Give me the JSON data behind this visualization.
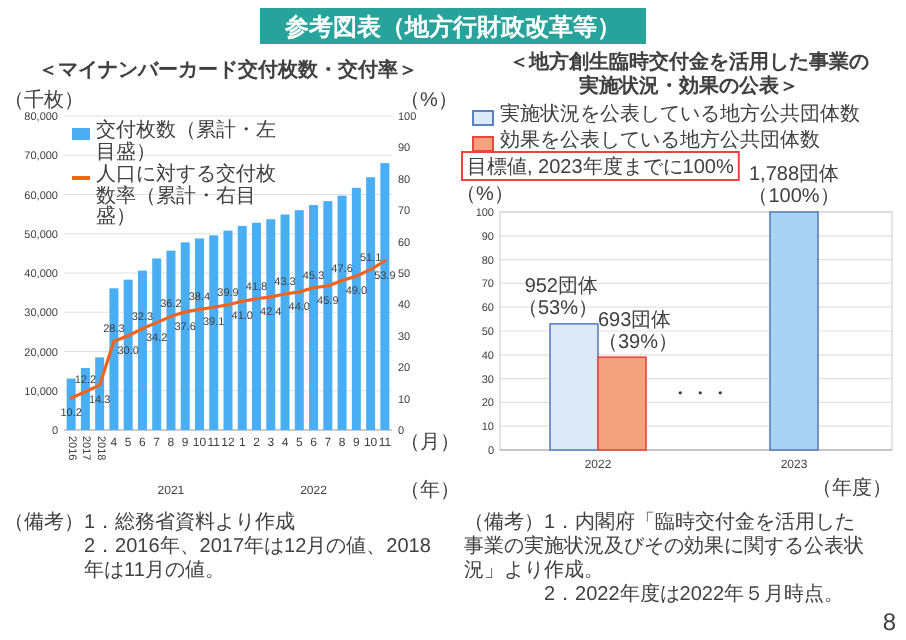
{
  "chart_data": [
    {
      "type": "other",
      "title": "参考図表（地方行財政改革等）"
    },
    {
      "type": "bar",
      "title": "＜マイナンバーカード交付枚数・交付率＞",
      "ylabel": "（千枚）",
      "y2label": "（%）",
      "xlabel": "（月）",
      "categories": [
        "2016",
        "2017",
        "2018",
        "4",
        "5",
        "6",
        "7",
        "8",
        "9",
        "10",
        "11",
        "12",
        "1",
        "2",
        "3",
        "4",
        "5",
        "6",
        "7",
        "8",
        "9",
        "10",
        "11"
      ],
      "series": [
        {
          "name": "交付枚数（累計・左目盛）",
          "color": "#4aaef5",
          "values": [
            13100,
            15800,
            18500,
            36100,
            38300,
            40600,
            43700,
            45700,
            47800,
            48800,
            49600,
            50800,
            52000,
            52800,
            53700,
            54900,
            56000,
            57300,
            58300,
            59700,
            61700,
            64400,
            68000
          ]
        },
        {
          "name": "人口に対する交付枚数率（累計・右目盛）",
          "type": "line",
          "axis": "y2",
          "color": "#f0641e",
          "values": [
            10.2,
            12.2,
            14.3,
            28.3,
            30.0,
            32.3,
            34.2,
            36.2,
            37.6,
            38.4,
            39.1,
            39.9,
            41.0,
            41.8,
            42.4,
            43.3,
            44.0,
            45.3,
            45.9,
            47.6,
            49.0,
            51.1,
            53.9
          ],
          "value_labels": [
            "10.2",
            "12.2",
            "14.3",
            "28.3",
            "30.0",
            "32.3",
            "34.2",
            "36.2",
            "37.6",
            "38.4",
            "39.1",
            "39.9",
            "41.0",
            "41.8",
            "42.4",
            "43.3",
            "44.0",
            "45.3",
            "45.9",
            "47.6",
            "49.0",
            "51.1",
            "53.9"
          ]
        }
      ],
      "ylim": [
        0,
        80000
      ],
      "yticks": [
        0,
        {
          "value": 10000,
          "label": "10,000"
        },
        {
          "value": 20000,
          "label": "20,000"
        },
        {
          "value": 30000,
          "label": "30,000"
        },
        {
          "value": 40000,
          "label": "40,000"
        },
        {
          "value": 50000,
          "label": "50,000"
        },
        {
          "value": 60000,
          "label": "60,000"
        },
        {
          "value": 70000,
          "label": "70,000"
        },
        {
          "value": 80000,
          "label": "80,000"
        }
      ],
      "y2lim": [
        0,
        100
      ],
      "y2ticks": [
        0,
        10,
        20,
        30,
        40,
        50,
        60,
        70,
        80,
        90,
        100
      ],
      "grid": "y",
      "legend": "top left",
      "annotations": [
        "2021",
        "2022",
        "（年）",
        "（備考）1．総務省資料より作成",
        "2．2016年、2017年は12月の値、2018年は11月の値。"
      ]
    },
    {
      "type": "bar",
      "title": "＜地方創生臨時交付金を活用した事業の実施状況・効果の公表＞",
      "ylabel": "（%）",
      "xlabel": "（年度）",
      "categories": [
        "2022",
        "2023"
      ],
      "series": [
        {
          "name": "実施状況を公表している地方公共団体数",
          "color": "#dbe9f8",
          "colors": [
            "#dbe9f8",
            "#a8d3f5"
          ],
          "values": [
            53,
            100
          ],
          "value_labels": [
            "952団体（53%）",
            "1,788団体（100%）"
          ]
        },
        {
          "name": "効果を公表している地方公共団体数",
          "color": "#f5a27f",
          "values": [
            39,
            null
          ],
          "value_labels": [
            "693団体（39%）",
            null
          ]
        }
      ],
      "ylim": [
        0,
        100
      ],
      "yticks": [
        0,
        10,
        20,
        30,
        40,
        50,
        60,
        70,
        80,
        90,
        100
      ],
      "grid": true,
      "legend": "top left",
      "annotations": [
        "目標値, 2023年度までに100%",
        "・・・",
        "（備考）1．内閣府「臨時交付金を活用した事業の実施状況及びその効果に関する公表状況」より作成。",
        "2．2022年度は2022年５月時点。",
        "8"
      ]
    }
  ]
}
